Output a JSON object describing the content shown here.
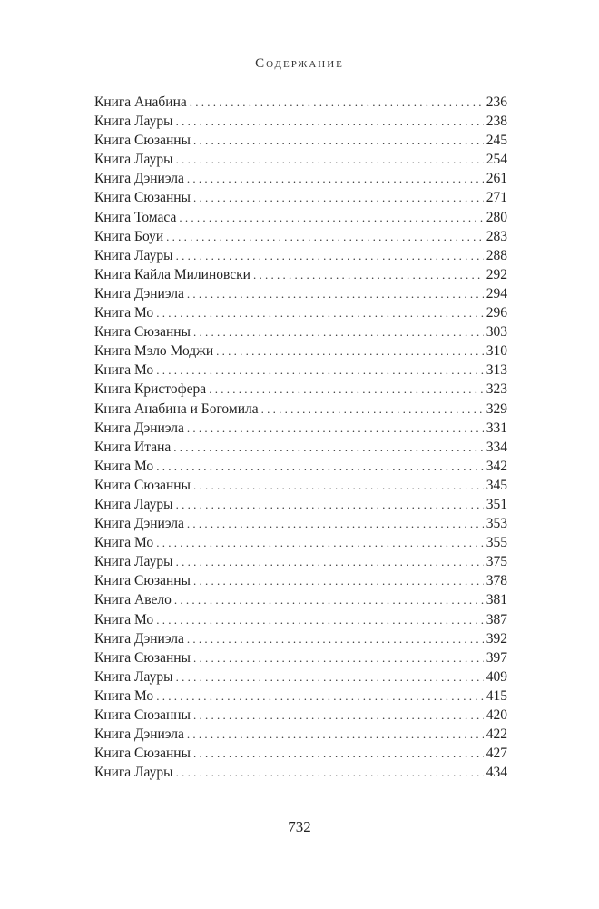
{
  "header": {
    "title": "Содержание"
  },
  "entries": [
    {
      "title": "Книга Анабина",
      "page": "236"
    },
    {
      "title": "Книга Лауры",
      "page": "238"
    },
    {
      "title": "Книга Сюзанны",
      "page": "245"
    },
    {
      "title": "Книга Лауры",
      "page": "254"
    },
    {
      "title": "Книга Дэниэла",
      "page": "261"
    },
    {
      "title": "Книга Сюзанны",
      "page": "271"
    },
    {
      "title": "Книга Томаса",
      "page": "280"
    },
    {
      "title": "Книга Боуи",
      "page": "283"
    },
    {
      "title": "Книга Лауры",
      "page": "288"
    },
    {
      "title": "Книга Кайла Милиновски",
      "page": "292"
    },
    {
      "title": "Книга Дэниэла",
      "page": "294"
    },
    {
      "title": "Книга Мо",
      "page": "296"
    },
    {
      "title": "Книга Сюзанны",
      "page": "303"
    },
    {
      "title": "Книга Мэло Моджи",
      "page": "310"
    },
    {
      "title": "Книга Мо",
      "page": "313"
    },
    {
      "title": "Книга Кристофера",
      "page": "323"
    },
    {
      "title": "Книга Анабина и Богомила",
      "page": "329"
    },
    {
      "title": "Книга Дэниэла",
      "page": "331"
    },
    {
      "title": "Книга Итана",
      "page": "334"
    },
    {
      "title": "Книга Мо",
      "page": "342"
    },
    {
      "title": "Книга Сюзанны",
      "page": "345"
    },
    {
      "title": "Книга Лауры",
      "page": "351"
    },
    {
      "title": "Книга Дэниэла",
      "page": "353"
    },
    {
      "title": "Книга Мо",
      "page": "355"
    },
    {
      "title": "Книга Лауры",
      "page": "375"
    },
    {
      "title": "Книга Сюзанны",
      "page": "378"
    },
    {
      "title": "Книга Авело",
      "page": "381"
    },
    {
      "title": "Книга Мо",
      "page": "387"
    },
    {
      "title": "Книга Дэниэла",
      "page": "392"
    },
    {
      "title": "Книга Сюзанны",
      "page": "397"
    },
    {
      "title": "Книга Лауры",
      "page": "409"
    },
    {
      "title": "Книга Мо",
      "page": "415"
    },
    {
      "title": "Книга Сюзанны",
      "page": "420"
    },
    {
      "title": "Книга Дэниэла",
      "page": "422"
    },
    {
      "title": "Книга Сюзанны",
      "page": "427"
    },
    {
      "title": "Книга Лауры",
      "page": "434"
    }
  ],
  "footer": {
    "page_number": "732"
  }
}
